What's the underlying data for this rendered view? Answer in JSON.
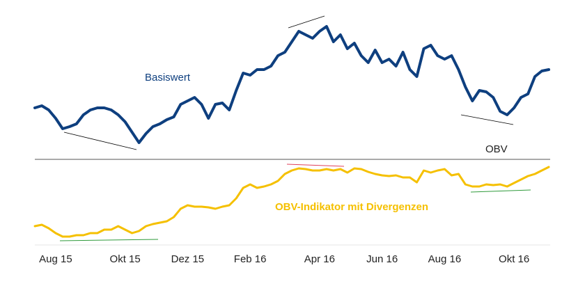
{
  "chart_data": {
    "type": "line",
    "categories": [
      null,
      null,
      null,
      "Aug 15",
      null,
      null,
      null,
      null,
      null,
      null,
      null,
      null,
      null,
      "Okt 15",
      null,
      null,
      null,
      null,
      null,
      null,
      null,
      null,
      "Dez 15",
      null,
      null,
      null,
      null,
      null,
      null,
      null,
      null,
      "Feb 16",
      null,
      null,
      null,
      null,
      null,
      null,
      null,
      null,
      null,
      "Apr 16",
      null,
      null,
      null,
      null,
      null,
      null,
      null,
      null,
      "Jun 16",
      null,
      null,
      null,
      null,
      null,
      null,
      null,
      null,
      "Aug 16",
      null,
      null,
      null,
      null,
      null,
      null,
      null,
      null,
      null,
      "Okt 16",
      null,
      null,
      null,
      null,
      null
    ],
    "series": [
      {
        "name": "Basiswert",
        "color": "#0e3f7f",
        "values": [
          75,
          78,
          72,
          60,
          45,
          48,
          52,
          65,
          72,
          75,
          75,
          72,
          65,
          55,
          40,
          25,
          38,
          48,
          52,
          58,
          62,
          80,
          85,
          90,
          80,
          60,
          80,
          82,
          72,
          100,
          125,
          122,
          130,
          130,
          135,
          150,
          155,
          170,
          185,
          180,
          175,
          185,
          192,
          170,
          180,
          160,
          168,
          150,
          140,
          158,
          140,
          145,
          135,
          155,
          130,
          120,
          160,
          165,
          150,
          145,
          150,
          130,
          105,
          85,
          100,
          98,
          90,
          70,
          65,
          75,
          90,
          95,
          120,
          128,
          130
        ]
      },
      {
        "name": "OBV-Indikator mit Divergenzen",
        "color": "#f5c000",
        "axis": "y2",
        "values": [
          25,
          27,
          22,
          15,
          10,
          10,
          12,
          12,
          15,
          15,
          20,
          20,
          25,
          20,
          15,
          18,
          25,
          28,
          30,
          32,
          38,
          50,
          55,
          53,
          53,
          52,
          50,
          53,
          55,
          65,
          80,
          85,
          80,
          82,
          85,
          90,
          100,
          105,
          108,
          107,
          105,
          105,
          107,
          105,
          107,
          102,
          108,
          107,
          103,
          100,
          98,
          97,
          98,
          95,
          95,
          88,
          105,
          102,
          105,
          107,
          98,
          100,
          85,
          82,
          82,
          85,
          84,
          85,
          82,
          87,
          92,
          97,
          100,
          105,
          110
        ]
      }
    ],
    "ylim": [
      0,
      200
    ],
    "y2lim": [
      0,
      120
    ],
    "annotations": [
      "OBV"
    ]
  }
}
